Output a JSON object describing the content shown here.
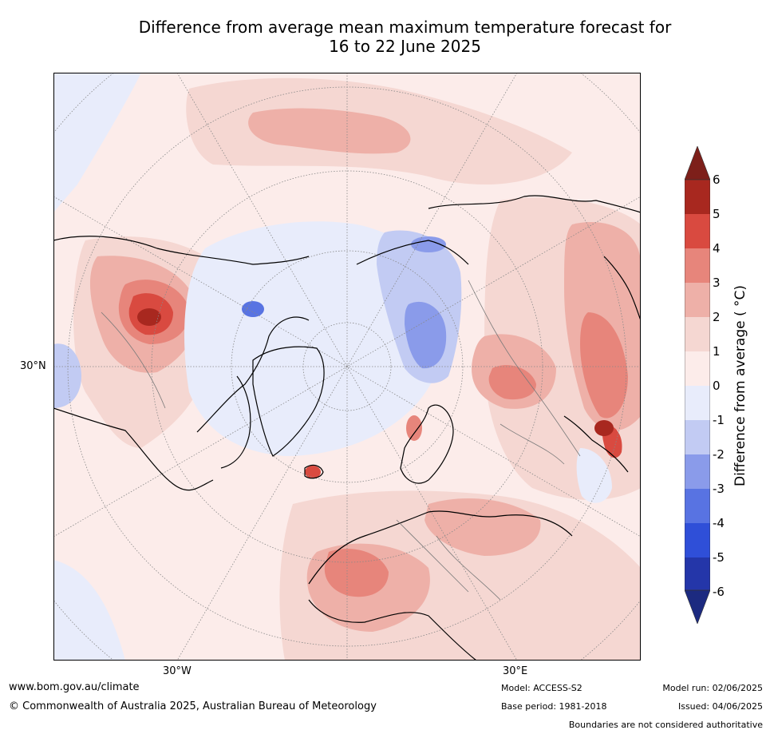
{
  "title": {
    "line1": "Difference from average mean maximum temperature forecast for",
    "line2": "16 to 22 June 2025"
  },
  "map": {
    "projection": "north-polar-stereographic",
    "lat_labels": [
      "30°N"
    ],
    "lon_labels": [
      "30°W",
      "30°E"
    ]
  },
  "colorbar": {
    "label": "Difference from average ( °C)",
    "ticks": [
      "6",
      "5",
      "4",
      "3",
      "2",
      "1",
      "0",
      "-1",
      "-2",
      "-3",
      "-4",
      "-5",
      "-6"
    ],
    "extend": "both",
    "colors": {
      "above_6": "#7d1f1a",
      "5_to_6": "#a8281f",
      "4_to_5": "#d94a40",
      "3_to_4": "#e7857b",
      "2_to_3": "#eeb0a8",
      "1_to_2": "#f5d7d2",
      "0_to_1": "#fcecea",
      "m1_to_0": "#e8ecfb",
      "m2_to_m1": "#c2cbf3",
      "m3_to_m2": "#8a9bea",
      "m4_to_m3": "#5873e2",
      "m5_to_m4": "#2f4fd8",
      "m6_to_m5": "#2436a9",
      "below_m6": "#1c2a80"
    }
  },
  "footer": {
    "website": "www.bom.gov.au/climate",
    "copyright": "© Commonwealth of Australia 2025, Australian Bureau of Meteorology",
    "model": "Model: ACCESS-S2",
    "base_period": "Base period: 1981-2018",
    "model_run": "Model run: 02/06/2025",
    "issued": "Issued: 04/06/2025",
    "disclaimer": "Boundaries are not considered authoritative"
  }
}
